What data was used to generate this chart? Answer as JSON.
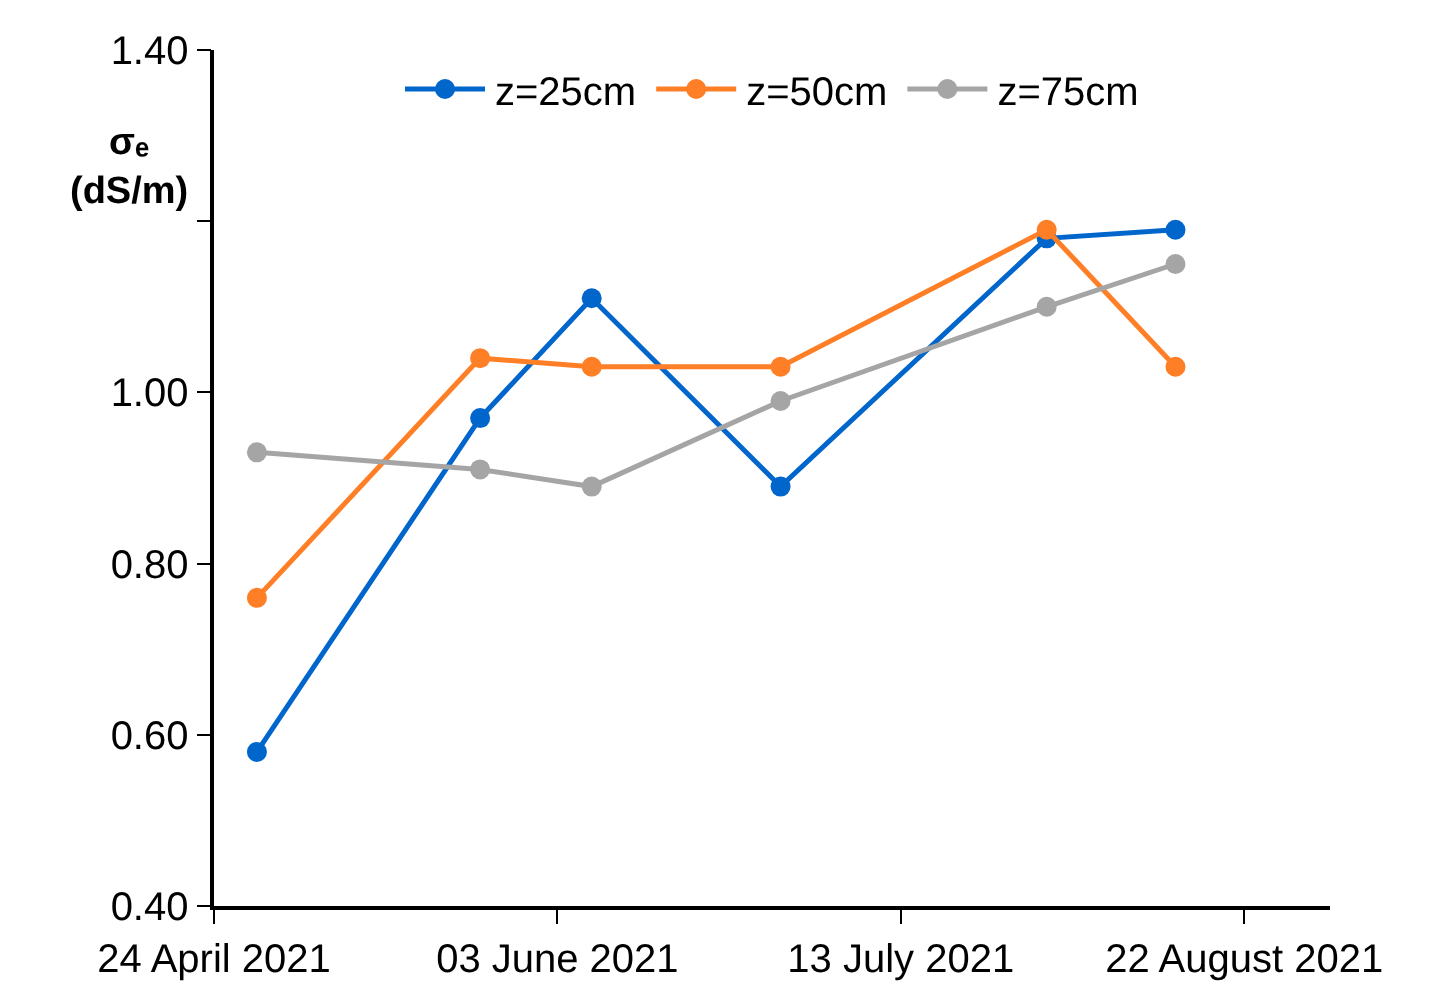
{
  "chart_data": {
    "type": "line",
    "ylabel": "σₑ\n(dS/m)",
    "x": [
      "2021-04-29",
      "2021-05-25",
      "2021-06-07",
      "2021-06-29",
      "2021-07-30",
      "2021-08-14"
    ],
    "series": [
      {
        "name": "z=25cm",
        "color": "#0066cc",
        "values": [
          0.58,
          0.97,
          1.11,
          0.89,
          1.18,
          1.19
        ]
      },
      {
        "name": "z=50cm",
        "color": "#ff7f27",
        "values": [
          0.76,
          1.04,
          1.03,
          1.03,
          1.19,
          1.03
        ]
      },
      {
        "name": "z=75cm",
        "color": "#a5a5a5",
        "values": [
          0.93,
          0.91,
          0.89,
          0.99,
          1.1,
          1.15
        ]
      }
    ],
    "xlim": [
      "2021-04-24",
      "2021-09-01"
    ],
    "xticks": [
      {
        "value": "2021-04-24",
        "label": "24 April 2021"
      },
      {
        "value": "2021-06-03",
        "label": "03 June 2021"
      },
      {
        "value": "2021-07-13",
        "label": "13 July 2021"
      },
      {
        "value": "2021-08-22",
        "label": "22 August 2021"
      }
    ],
    "ylim": [
      0.4,
      1.4
    ],
    "yticks": [
      {
        "value": 0.4,
        "label": "0.40"
      },
      {
        "value": 0.6,
        "label": "0.60"
      },
      {
        "value": 0.8,
        "label": "0.80"
      },
      {
        "value": 1.0,
        "label": "1.00"
      },
      {
        "value": 1.2,
        "label": null
      },
      {
        "value": 1.4,
        "label": "1.40"
      }
    ],
    "legend": "top",
    "marker": "circle",
    "line_style": "solid"
  }
}
